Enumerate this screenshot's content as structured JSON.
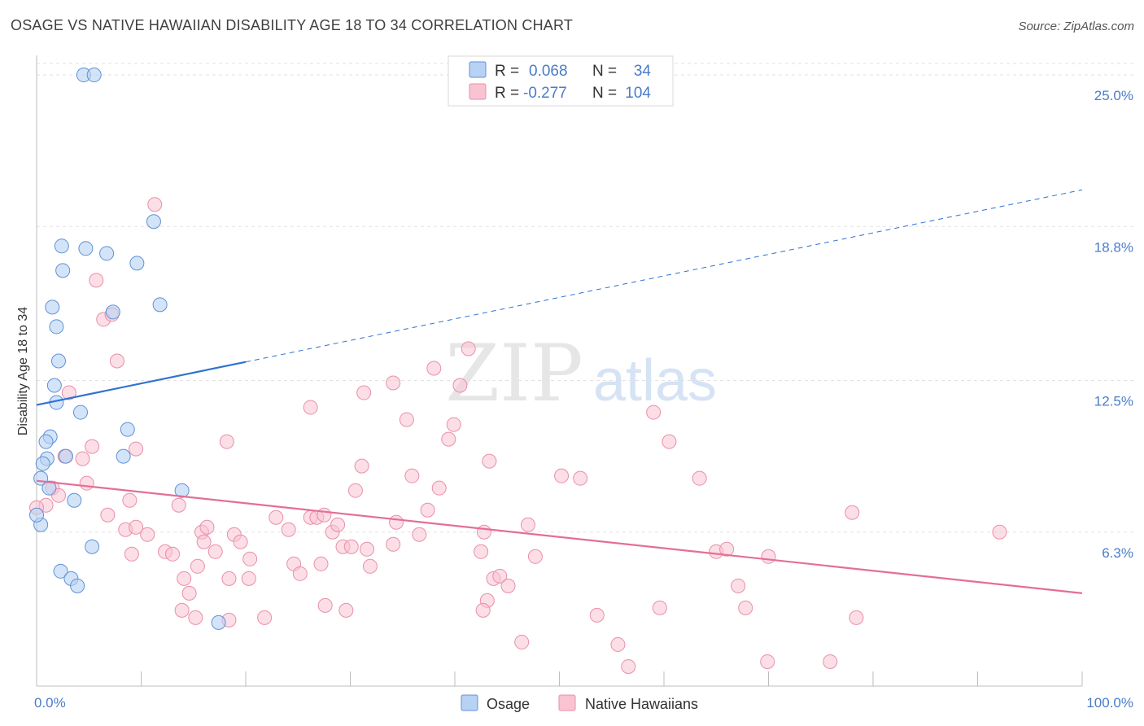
{
  "title": "OSAGE VS NATIVE HAWAIIAN DISABILITY AGE 18 TO 34 CORRELATION CHART",
  "source": "Source: ZipAtlas.com",
  "watermark": {
    "left": "ZIP",
    "right": "atlas"
  },
  "colors": {
    "osage_fill": "#b7d2f3",
    "osage_stroke": "#5f91d6",
    "osage_line": "#2f72d0",
    "hawaiian_fill": "#f9c3d2",
    "hawaiian_stroke": "#e98fa9",
    "hawaiian_line": "#e46e97",
    "axis_label": "#4a7cc9",
    "grid": "#e2e2e2"
  },
  "stats": [
    {
      "r_label": "R =",
      "r": "0.068",
      "n_label": "N =",
      "n": "34"
    },
    {
      "r_label": "R =",
      "r": "-0.277",
      "n_label": "N =",
      "n": "104"
    }
  ],
  "chart_data": {
    "type": "scatter",
    "title": "OSAGE VS NATIVE HAWAIIAN DISABILITY AGE 18 TO 34 CORRELATION CHART",
    "xlabel": "",
    "ylabel": "Disability Age 18 to 34",
    "xlim": [
      0,
      100
    ],
    "ylim": [
      0,
      25.8
    ],
    "x_tick_labels": [
      "0.0%",
      "100.0%"
    ],
    "y_ticks": [
      6.3,
      12.5,
      18.8,
      25.0
    ],
    "y_tick_labels": [
      "6.3%",
      "12.5%",
      "18.8%",
      "25.0%"
    ],
    "legend": [
      "Osage",
      "Native Hawaiians"
    ],
    "series": [
      {
        "name": "Osage",
        "points": [
          [
            4.5,
            25.0
          ],
          [
            5.5,
            25.0
          ],
          [
            11.2,
            19.0
          ],
          [
            2.4,
            18.0
          ],
          [
            4.7,
            17.9
          ],
          [
            6.7,
            17.7
          ],
          [
            9.6,
            17.3
          ],
          [
            2.5,
            17.0
          ],
          [
            11.8,
            15.6
          ],
          [
            1.5,
            15.5
          ],
          [
            7.3,
            15.3
          ],
          [
            1.9,
            14.7
          ],
          [
            2.1,
            13.3
          ],
          [
            1.7,
            12.3
          ],
          [
            1.9,
            11.6
          ],
          [
            4.2,
            11.2
          ],
          [
            8.7,
            10.5
          ],
          [
            1.3,
            10.2
          ],
          [
            0.9,
            10.0
          ],
          [
            8.3,
            9.4
          ],
          [
            2.8,
            9.4
          ],
          [
            1.0,
            9.3
          ],
          [
            0.6,
            9.1
          ],
          [
            0.4,
            8.5
          ],
          [
            1.2,
            8.1
          ],
          [
            13.9,
            8.0
          ],
          [
            3.6,
            7.6
          ],
          [
            0.4,
            6.6
          ],
          [
            5.3,
            5.7
          ],
          [
            2.3,
            4.7
          ],
          [
            3.3,
            4.4
          ],
          [
            3.9,
            4.1
          ],
          [
            17.4,
            2.6
          ],
          [
            0.0,
            7.0
          ]
        ]
      },
      {
        "name": "Native Hawaiians",
        "points": [
          [
            11.3,
            19.7
          ],
          [
            5.7,
            16.6
          ],
          [
            6.4,
            15.0
          ],
          [
            7.2,
            15.2
          ],
          [
            7.7,
            13.3
          ],
          [
            3.1,
            12.0
          ],
          [
            9.5,
            9.7
          ],
          [
            5.3,
            9.8
          ],
          [
            4.4,
            9.3
          ],
          [
            2.7,
            9.4
          ],
          [
            4.8,
            8.3
          ],
          [
            1.5,
            8.1
          ],
          [
            2.1,
            7.8
          ],
          [
            8.9,
            7.6
          ],
          [
            0.9,
            7.4
          ],
          [
            13.6,
            7.4
          ],
          [
            6.8,
            7.0
          ],
          [
            8.5,
            6.4
          ],
          [
            9.5,
            6.5
          ],
          [
            10.6,
            6.2
          ],
          [
            15.8,
            6.3
          ],
          [
            16.3,
            6.5
          ],
          [
            16.0,
            5.9
          ],
          [
            12.3,
            5.5
          ],
          [
            9.1,
            5.4
          ],
          [
            13.0,
            5.4
          ],
          [
            17.1,
            5.5
          ],
          [
            18.9,
            6.2
          ],
          [
            19.5,
            5.9
          ],
          [
            18.4,
            4.4
          ],
          [
            20.4,
            5.2
          ],
          [
            15.4,
            4.9
          ],
          [
            14.1,
            4.4
          ],
          [
            14.6,
            3.8
          ],
          [
            13.9,
            3.1
          ],
          [
            15.2,
            2.8
          ],
          [
            18.4,
            2.7
          ],
          [
            20.3,
            4.4
          ],
          [
            21.8,
            2.8
          ],
          [
            22.9,
            6.9
          ],
          [
            24.1,
            6.4
          ],
          [
            24.6,
            5.0
          ],
          [
            25.2,
            4.6
          ],
          [
            26.2,
            6.9
          ],
          [
            26.8,
            6.9
          ],
          [
            27.5,
            7.0
          ],
          [
            28.3,
            6.3
          ],
          [
            28.8,
            6.6
          ],
          [
            27.6,
            3.3
          ],
          [
            27.2,
            5.0
          ],
          [
            29.3,
            5.7
          ],
          [
            30.1,
            5.7
          ],
          [
            30.5,
            8.0
          ],
          [
            31.1,
            9.0
          ],
          [
            31.6,
            5.6
          ],
          [
            31.9,
            4.9
          ],
          [
            29.6,
            3.1
          ],
          [
            31.3,
            12.0
          ],
          [
            34.1,
            12.4
          ],
          [
            35.4,
            10.9
          ],
          [
            34.4,
            6.7
          ],
          [
            34.1,
            5.8
          ],
          [
            35.9,
            8.6
          ],
          [
            36.6,
            6.2
          ],
          [
            37.4,
            7.2
          ],
          [
            38.0,
            13.0
          ],
          [
            38.5,
            8.1
          ],
          [
            39.4,
            10.1
          ],
          [
            39.9,
            10.7
          ],
          [
            40.5,
            12.3
          ],
          [
            41.3,
            13.8
          ],
          [
            43.3,
            9.2
          ],
          [
            43.1,
            3.5
          ],
          [
            42.5,
            5.5
          ],
          [
            42.7,
            3.1
          ],
          [
            43.7,
            4.4
          ],
          [
            44.3,
            4.5
          ],
          [
            45.1,
            4.1
          ],
          [
            47.0,
            6.6
          ],
          [
            47.7,
            5.3
          ],
          [
            50.2,
            8.6
          ],
          [
            52.0,
            8.5
          ],
          [
            53.6,
            2.9
          ],
          [
            55.6,
            1.7
          ],
          [
            56.6,
            0.8
          ],
          [
            59.6,
            3.2
          ],
          [
            59.0,
            11.2
          ],
          [
            60.5,
            10.0
          ],
          [
            63.4,
            8.5
          ],
          [
            65.0,
            5.5
          ],
          [
            66.0,
            5.6
          ],
          [
            67.1,
            4.1
          ],
          [
            67.8,
            3.2
          ],
          [
            70.0,
            5.3
          ],
          [
            69.9,
            1.0
          ],
          [
            75.9,
            1.0
          ],
          [
            78.0,
            7.1
          ],
          [
            78.4,
            2.8
          ],
          [
            92.1,
            6.3
          ],
          [
            46.4,
            1.8
          ],
          [
            42.8,
            6.3
          ],
          [
            26.2,
            11.4
          ],
          [
            18.2,
            10.0
          ],
          [
            0.0,
            7.3
          ]
        ]
      }
    ],
    "trend_lines": [
      {
        "series": "Osage",
        "x": [
          0,
          100
        ],
        "y": [
          11.5,
          20.3
        ],
        "solid_until_x": 20
      },
      {
        "series": "Native Hawaiians",
        "x": [
          0,
          100
        ],
        "y": [
          8.4,
          3.8
        ]
      }
    ]
  }
}
